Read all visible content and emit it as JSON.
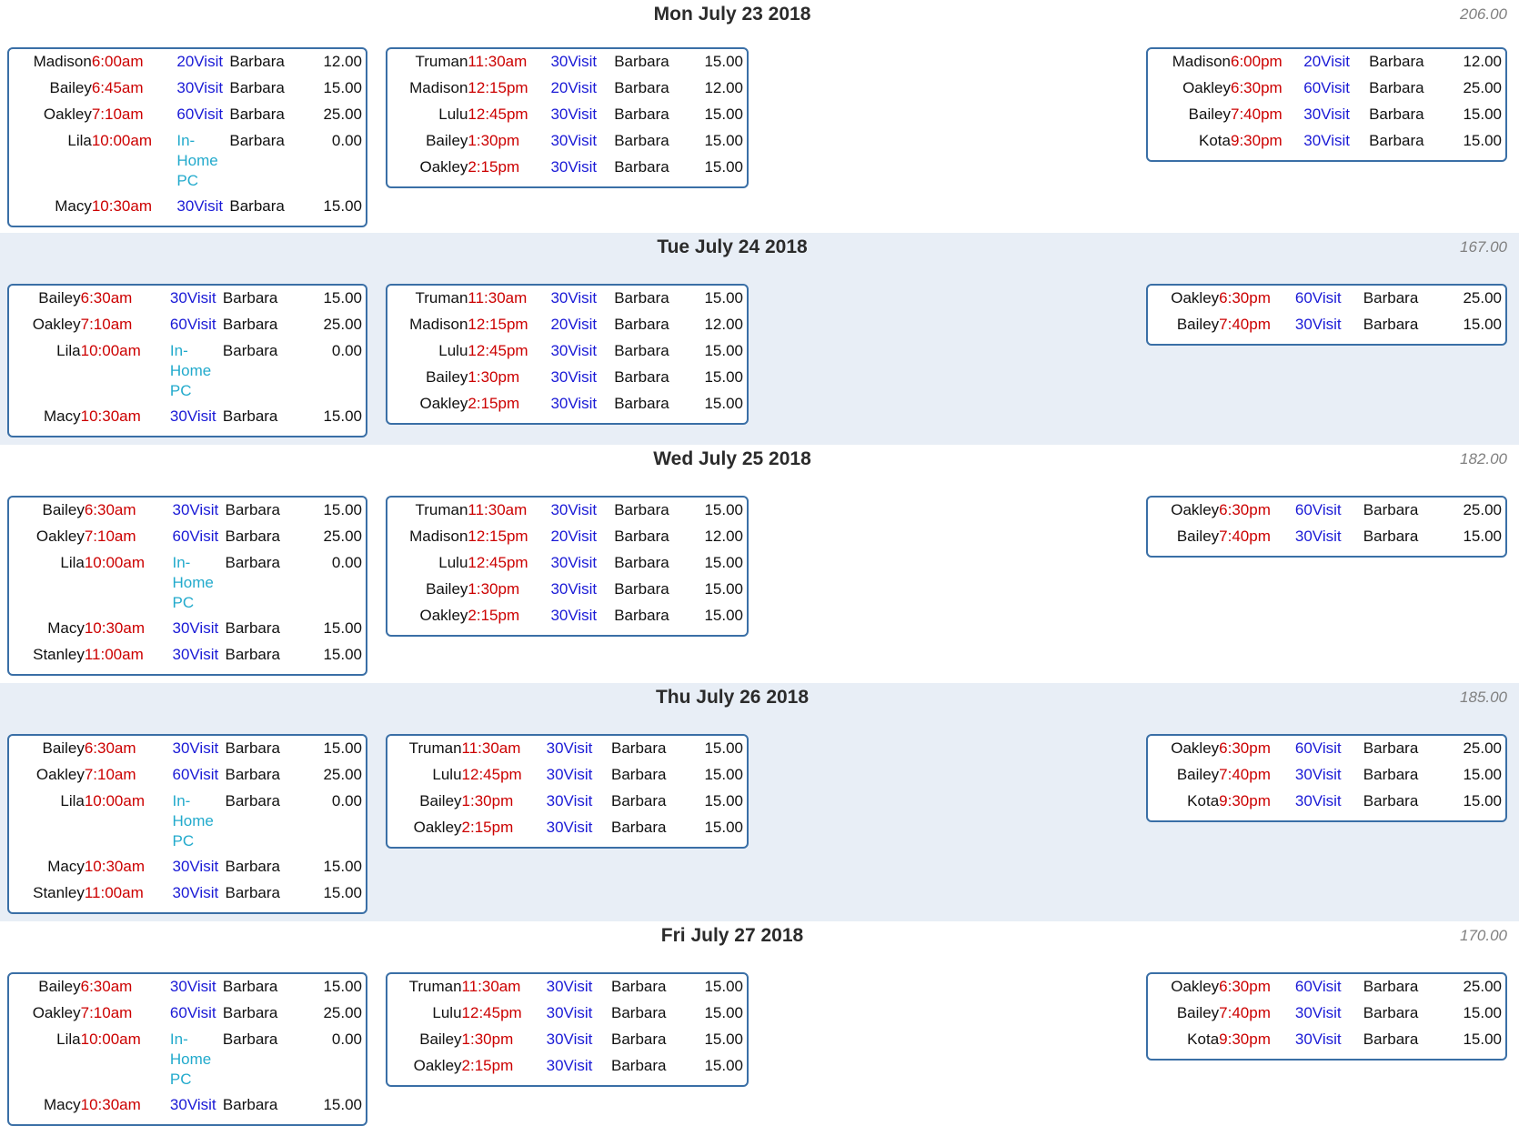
{
  "days": [
    {
      "title": "Mon July 23 2018",
      "total": "206.00",
      "morning": [
        {
          "pet": "Madison",
          "time": "6:00am",
          "type": "20Visit",
          "walker": "Barbara",
          "amount": "12.00"
        },
        {
          "pet": "Bailey",
          "time": "6:45am",
          "type": "30Visit",
          "walker": "Barbara",
          "amount": "15.00"
        },
        {
          "pet": "Oakley",
          "time": "7:10am",
          "type": "60Visit",
          "walker": "Barbara",
          "amount": "25.00"
        },
        {
          "pet": "Lila",
          "time": "10:00am",
          "type": "In-Home PC",
          "walker": "Barbara",
          "amount": "0.00"
        },
        {
          "pet": "Macy",
          "time": "10:30am",
          "type": "30Visit",
          "walker": "Barbara",
          "amount": "15.00"
        }
      ],
      "midday": [
        {
          "pet": "Truman",
          "time": "11:30am",
          "type": "30Visit",
          "walker": "Barbara",
          "amount": "15.00"
        },
        {
          "pet": "Madison",
          "time": "12:15pm",
          "type": "20Visit",
          "walker": "Barbara",
          "amount": "12.00"
        },
        {
          "pet": "Lulu",
          "time": "12:45pm",
          "type": "30Visit",
          "walker": "Barbara",
          "amount": "15.00"
        },
        {
          "pet": "Bailey",
          "time": "1:30pm",
          "type": "30Visit",
          "walker": "Barbara",
          "amount": "15.00"
        },
        {
          "pet": "Oakley",
          "time": "2:15pm",
          "type": "30Visit",
          "walker": "Barbara",
          "amount": "15.00"
        }
      ],
      "evening": [
        {
          "pet": "Madison",
          "time": "6:00pm",
          "type": "20Visit",
          "walker": "Barbara",
          "amount": "12.00"
        },
        {
          "pet": "Oakley",
          "time": "6:30pm",
          "type": "60Visit",
          "walker": "Barbara",
          "amount": "25.00"
        },
        {
          "pet": "Bailey",
          "time": "7:40pm",
          "type": "30Visit",
          "walker": "Barbara",
          "amount": "15.00"
        },
        {
          "pet": "Kota",
          "time": "9:30pm",
          "type": "30Visit",
          "walker": "Barbara",
          "amount": "15.00"
        }
      ]
    },
    {
      "title": "Tue July 24 2018",
      "total": "167.00",
      "morning": [
        {
          "pet": "Bailey",
          "time": "6:30am",
          "type": "30Visit",
          "walker": "Barbara",
          "amount": "15.00"
        },
        {
          "pet": "Oakley",
          "time": "7:10am",
          "type": "60Visit",
          "walker": "Barbara",
          "amount": "25.00"
        },
        {
          "pet": "Lila",
          "time": "10:00am",
          "type": "In-Home PC",
          "walker": "Barbara",
          "amount": "0.00"
        },
        {
          "pet": "Macy",
          "time": "10:30am",
          "type": "30Visit",
          "walker": "Barbara",
          "amount": "15.00"
        }
      ],
      "midday": [
        {
          "pet": "Truman",
          "time": "11:30am",
          "type": "30Visit",
          "walker": "Barbara",
          "amount": "15.00"
        },
        {
          "pet": "Madison",
          "time": "12:15pm",
          "type": "20Visit",
          "walker": "Barbara",
          "amount": "12.00"
        },
        {
          "pet": "Lulu",
          "time": "12:45pm",
          "type": "30Visit",
          "walker": "Barbara",
          "amount": "15.00"
        },
        {
          "pet": "Bailey",
          "time": "1:30pm",
          "type": "30Visit",
          "walker": "Barbara",
          "amount": "15.00"
        },
        {
          "pet": "Oakley",
          "time": "2:15pm",
          "type": "30Visit",
          "walker": "Barbara",
          "amount": "15.00"
        }
      ],
      "evening": [
        {
          "pet": "Oakley",
          "time": "6:30pm",
          "type": "60Visit",
          "walker": "Barbara",
          "amount": "25.00"
        },
        {
          "pet": "Bailey",
          "time": "7:40pm",
          "type": "30Visit",
          "walker": "Barbara",
          "amount": "15.00"
        }
      ]
    },
    {
      "title": "Wed July 25 2018",
      "total": "182.00",
      "morning": [
        {
          "pet": "Bailey",
          "time": "6:30am",
          "type": "30Visit",
          "walker": "Barbara",
          "amount": "15.00"
        },
        {
          "pet": "Oakley",
          "time": "7:10am",
          "type": "60Visit",
          "walker": "Barbara",
          "amount": "25.00"
        },
        {
          "pet": "Lila",
          "time": "10:00am",
          "type": "In-Home PC",
          "walker": "Barbara",
          "amount": "0.00"
        },
        {
          "pet": "Macy",
          "time": "10:30am",
          "type": "30Visit",
          "walker": "Barbara",
          "amount": "15.00"
        },
        {
          "pet": "Stanley",
          "time": "11:00am",
          "type": "30Visit",
          "walker": "Barbara",
          "amount": "15.00"
        }
      ],
      "midday": [
        {
          "pet": "Truman",
          "time": "11:30am",
          "type": "30Visit",
          "walker": "Barbara",
          "amount": "15.00"
        },
        {
          "pet": "Madison",
          "time": "12:15pm",
          "type": "20Visit",
          "walker": "Barbara",
          "amount": "12.00"
        },
        {
          "pet": "Lulu",
          "time": "12:45pm",
          "type": "30Visit",
          "walker": "Barbara",
          "amount": "15.00"
        },
        {
          "pet": "Bailey",
          "time": "1:30pm",
          "type": "30Visit",
          "walker": "Barbara",
          "amount": "15.00"
        },
        {
          "pet": "Oakley",
          "time": "2:15pm",
          "type": "30Visit",
          "walker": "Barbara",
          "amount": "15.00"
        }
      ],
      "evening": [
        {
          "pet": "Oakley",
          "time": "6:30pm",
          "type": "60Visit",
          "walker": "Barbara",
          "amount": "25.00"
        },
        {
          "pet": "Bailey",
          "time": "7:40pm",
          "type": "30Visit",
          "walker": "Barbara",
          "amount": "15.00"
        }
      ]
    },
    {
      "title": "Thu July 26 2018",
      "total": "185.00",
      "morning": [
        {
          "pet": "Bailey",
          "time": "6:30am",
          "type": "30Visit",
          "walker": "Barbara",
          "amount": "15.00"
        },
        {
          "pet": "Oakley",
          "time": "7:10am",
          "type": "60Visit",
          "walker": "Barbara",
          "amount": "25.00"
        },
        {
          "pet": "Lila",
          "time": "10:00am",
          "type": "In-Home PC",
          "walker": "Barbara",
          "amount": "0.00"
        },
        {
          "pet": "Macy",
          "time": "10:30am",
          "type": "30Visit",
          "walker": "Barbara",
          "amount": "15.00"
        },
        {
          "pet": "Stanley",
          "time": "11:00am",
          "type": "30Visit",
          "walker": "Barbara",
          "amount": "15.00"
        }
      ],
      "midday": [
        {
          "pet": "Truman",
          "time": "11:30am",
          "type": "30Visit",
          "walker": "Barbara",
          "amount": "15.00"
        },
        {
          "pet": "Lulu",
          "time": "12:45pm",
          "type": "30Visit",
          "walker": "Barbara",
          "amount": "15.00"
        },
        {
          "pet": "Bailey",
          "time": "1:30pm",
          "type": "30Visit",
          "walker": "Barbara",
          "amount": "15.00"
        },
        {
          "pet": "Oakley",
          "time": "2:15pm",
          "type": "30Visit",
          "walker": "Barbara",
          "amount": "15.00"
        }
      ],
      "evening": [
        {
          "pet": "Oakley",
          "time": "6:30pm",
          "type": "60Visit",
          "walker": "Barbara",
          "amount": "25.00"
        },
        {
          "pet": "Bailey",
          "time": "7:40pm",
          "type": "30Visit",
          "walker": "Barbara",
          "amount": "15.00"
        },
        {
          "pet": "Kota",
          "time": "9:30pm",
          "type": "30Visit",
          "walker": "Barbara",
          "amount": "15.00"
        }
      ]
    },
    {
      "title": "Fri July 27 2018",
      "total": "170.00",
      "morning": [
        {
          "pet": "Bailey",
          "time": "6:30am",
          "type": "30Visit",
          "walker": "Barbara",
          "amount": "15.00"
        },
        {
          "pet": "Oakley",
          "time": "7:10am",
          "type": "60Visit",
          "walker": "Barbara",
          "amount": "25.00"
        },
        {
          "pet": "Lila",
          "time": "10:00am",
          "type": "In-Home PC",
          "walker": "Barbara",
          "amount": "0.00"
        },
        {
          "pet": "Macy",
          "time": "10:30am",
          "type": "30Visit",
          "walker": "Barbara",
          "amount": "15.00"
        }
      ],
      "midday": [
        {
          "pet": "Truman",
          "time": "11:30am",
          "type": "30Visit",
          "walker": "Barbara",
          "amount": "15.00"
        },
        {
          "pet": "Lulu",
          "time": "12:45pm",
          "type": "30Visit",
          "walker": "Barbara",
          "amount": "15.00"
        },
        {
          "pet": "Bailey",
          "time": "1:30pm",
          "type": "30Visit",
          "walker": "Barbara",
          "amount": "15.00"
        },
        {
          "pet": "Oakley",
          "time": "2:15pm",
          "type": "30Visit",
          "walker": "Barbara",
          "amount": "15.00"
        }
      ],
      "evening": [
        {
          "pet": "Oakley",
          "time": "6:30pm",
          "type": "60Visit",
          "walker": "Barbara",
          "amount": "25.00"
        },
        {
          "pet": "Bailey",
          "time": "7:40pm",
          "type": "30Visit",
          "walker": "Barbara",
          "amount": "15.00"
        },
        {
          "pet": "Kota",
          "time": "9:30pm",
          "type": "30Visit",
          "walker": "Barbara",
          "amount": "15.00"
        }
      ]
    }
  ],
  "colors": {
    "time": "#cc0000",
    "visit": "#1a1ad6",
    "in_home": "#22aacc",
    "border": "#3a6fa6",
    "shaded_band": "#e8eef6"
  }
}
